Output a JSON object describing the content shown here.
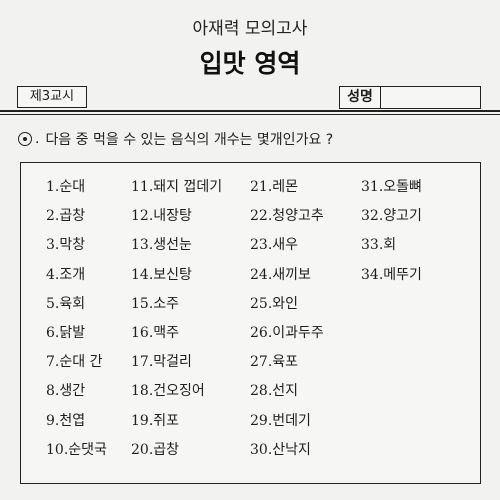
{
  "header": {
    "subtitle": "아재력 모의고사",
    "title": "입맛 영역",
    "session": "제3교시",
    "name_label": "성명"
  },
  "question": {
    "marker": ".",
    "text": "다음 중 먹을 수 있는 음식의 개수는 몇개인가요 ?"
  },
  "columns": [
    [
      "1.순대",
      "2.곱창",
      "3.막창",
      "4.조개",
      "5.육회",
      "6.닭발",
      "7.순대 간",
      "8.생간",
      "9.천엽",
      "10.순댓국"
    ],
    [
      "11.돼지 껍데기",
      "12.내장탕",
      "13.생선눈",
      "14.보신탕",
      "15.소주",
      "16.맥주",
      "17.막걸리",
      "18.건오징어",
      "19.쥐포",
      "20.곱창"
    ],
    [
      "21.레몬",
      "22.청양고추",
      "23.새우",
      "24.새끼보",
      "25.와인",
      "26.이과두주",
      "27.육포",
      "28.선지",
      "29.번데기",
      "30.산낙지"
    ],
    [
      "31.오돌뼈",
      "32.양고기",
      "33.회",
      "34.메뚜기"
    ]
  ]
}
